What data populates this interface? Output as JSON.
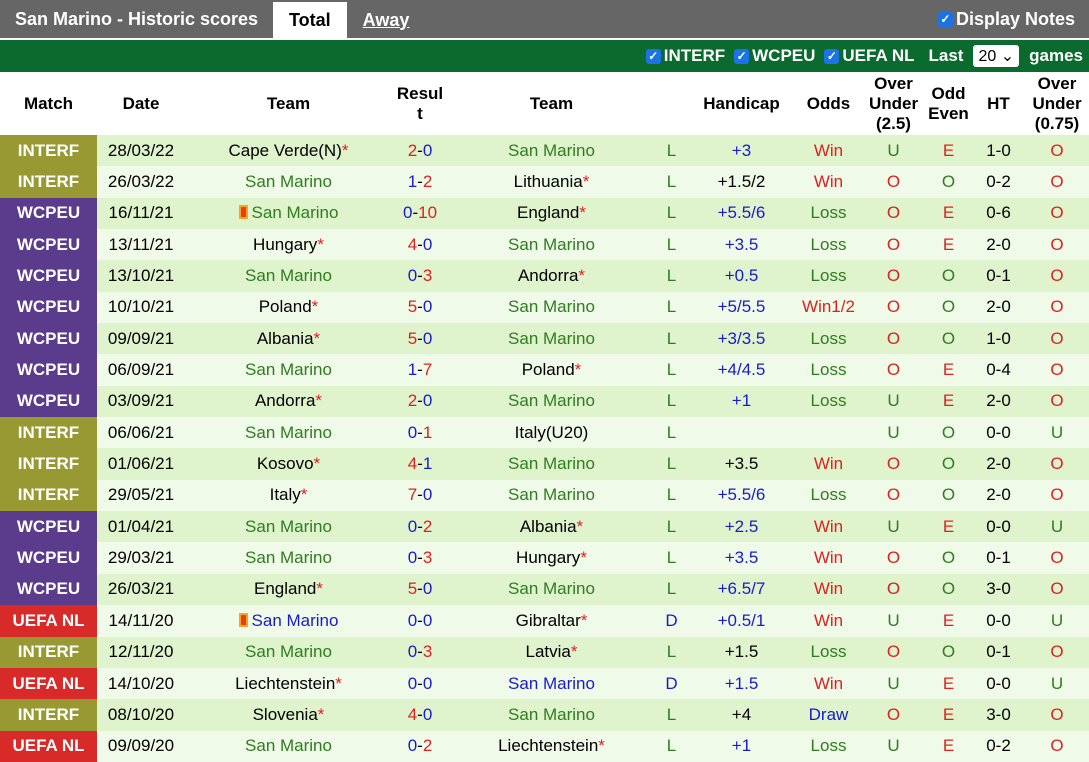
{
  "header": {
    "title": "San Marino - Historic scores",
    "tabs": [
      "Total",
      "Away"
    ],
    "display_notes": "Display Notes"
  },
  "filters": {
    "items": [
      "INTERF",
      "WCPEU",
      "UEFA NL"
    ],
    "last_label": "Last",
    "last_value": "20",
    "games_label": "games"
  },
  "columns": [
    "Match",
    "Date",
    "Team",
    "Resul t",
    "Team",
    "",
    "Handicap",
    "Odds",
    "Over Under (2.5)",
    "Odd Even",
    "HT",
    "Over Under (0.75)"
  ],
  "colors": {
    "INTERF": "#999933",
    "WCPEU": "#5a3b8c",
    "UEFA NL": "#d92a2a"
  },
  "rows": [
    {
      "match": "INTERF",
      "date": "28/03/22",
      "home": "Cape Verde(N)",
      "hs": true,
      "score": "2-0",
      "away": "San Marino",
      "as": false,
      "wl": "L",
      "hcp": "+3",
      "hb": false,
      "odds": "Win",
      "ou": "U",
      "oe": "E",
      "ht": "1-0",
      "ou2": "O"
    },
    {
      "match": "INTERF",
      "date": "26/03/22",
      "home": "San Marino",
      "hs": false,
      "score": "1-2",
      "away": "Lithuania",
      "as": true,
      "wl": "L",
      "hcp": "+1.5/2",
      "hb": true,
      "odds": "Win",
      "ou": "O",
      "oe": "O",
      "ht": "0-2",
      "ou2": "O"
    },
    {
      "match": "WCPEU",
      "date": "16/11/21",
      "home": "San Marino",
      "hs": false,
      "score": "0-10",
      "away": "England",
      "as": true,
      "wl": "L",
      "hcp": "+5.5/6",
      "hb": false,
      "odds": "Loss",
      "ou": "O",
      "oe": "E",
      "ht": "0-6",
      "ou2": "O",
      "card": true
    },
    {
      "match": "WCPEU",
      "date": "13/11/21",
      "home": "Hungary",
      "hs": true,
      "score": "4-0",
      "away": "San Marino",
      "as": false,
      "wl": "L",
      "hcp": "+3.5",
      "hb": false,
      "odds": "Loss",
      "ou": "O",
      "oe": "E",
      "ht": "2-0",
      "ou2": "O"
    },
    {
      "match": "WCPEU",
      "date": "13/10/21",
      "home": "San Marino",
      "hs": false,
      "score": "0-3",
      "away": "Andorra",
      "as": true,
      "wl": "L",
      "hcp": "+0.5",
      "hb": false,
      "odds": "Loss",
      "ou": "O",
      "oe": "O",
      "ht": "0-1",
      "ou2": "O"
    },
    {
      "match": "WCPEU",
      "date": "10/10/21",
      "home": "Poland",
      "hs": true,
      "score": "5-0",
      "away": "San Marino",
      "as": false,
      "wl": "L",
      "hcp": "+5/5.5",
      "hb": false,
      "odds": "Win1/2",
      "ou": "O",
      "oe": "O",
      "ht": "2-0",
      "ou2": "O"
    },
    {
      "match": "WCPEU",
      "date": "09/09/21",
      "home": "Albania",
      "hs": true,
      "score": "5-0",
      "away": "San Marino",
      "as": false,
      "wl": "L",
      "hcp": "+3/3.5",
      "hb": false,
      "odds": "Loss",
      "ou": "O",
      "oe": "O",
      "ht": "1-0",
      "ou2": "O"
    },
    {
      "match": "WCPEU",
      "date": "06/09/21",
      "home": "San Marino",
      "hs": false,
      "score": "1-7",
      "away": "Poland",
      "as": true,
      "wl": "L",
      "hcp": "+4/4.5",
      "hb": false,
      "odds": "Loss",
      "ou": "O",
      "oe": "E",
      "ht": "0-4",
      "ou2": "O"
    },
    {
      "match": "WCPEU",
      "date": "03/09/21",
      "home": "Andorra",
      "hs": true,
      "score": "2-0",
      "away": "San Marino",
      "as": false,
      "wl": "L",
      "hcp": "+1",
      "hb": false,
      "odds": "Loss",
      "ou": "U",
      "oe": "E",
      "ht": "2-0",
      "ou2": "O"
    },
    {
      "match": "INTERF",
      "date": "06/06/21",
      "home": "San Marino",
      "hs": false,
      "score": "0-1",
      "away": "Italy(U20)",
      "as": false,
      "wl": "L",
      "hcp": "",
      "hb": false,
      "odds": "",
      "ou": "U",
      "oe": "O",
      "ht": "0-0",
      "ou2": "U"
    },
    {
      "match": "INTERF",
      "date": "01/06/21",
      "home": "Kosovo",
      "hs": true,
      "score": "4-1",
      "away": "San Marino",
      "as": false,
      "wl": "L",
      "hcp": "+3.5",
      "hb": true,
      "odds": "Win",
      "ou": "O",
      "oe": "O",
      "ht": "2-0",
      "ou2": "O"
    },
    {
      "match": "INTERF",
      "date": "29/05/21",
      "home": "Italy",
      "hs": true,
      "score": "7-0",
      "away": "San Marino",
      "as": false,
      "wl": "L",
      "hcp": "+5.5/6",
      "hb": false,
      "odds": "Loss",
      "ou": "O",
      "oe": "O",
      "ht": "2-0",
      "ou2": "O"
    },
    {
      "match": "WCPEU",
      "date": "01/04/21",
      "home": "San Marino",
      "hs": false,
      "score": "0-2",
      "away": "Albania",
      "as": true,
      "wl": "L",
      "hcp": "+2.5",
      "hb": false,
      "odds": "Win",
      "ou": "U",
      "oe": "E",
      "ht": "0-0",
      "ou2": "U"
    },
    {
      "match": "WCPEU",
      "date": "29/03/21",
      "home": "San Marino",
      "hs": false,
      "score": "0-3",
      "away": "Hungary",
      "as": true,
      "wl": "L",
      "hcp": "+3.5",
      "hb": false,
      "odds": "Win",
      "ou": "O",
      "oe": "O",
      "ht": "0-1",
      "ou2": "O"
    },
    {
      "match": "WCPEU",
      "date": "26/03/21",
      "home": "England",
      "hs": true,
      "score": "5-0",
      "away": "San Marino",
      "as": false,
      "wl": "L",
      "hcp": "+6.5/7",
      "hb": false,
      "odds": "Win",
      "ou": "O",
      "oe": "O",
      "ht": "3-0",
      "ou2": "O"
    },
    {
      "match": "UEFA NL",
      "date": "14/11/20",
      "home": "San Marino",
      "hs": false,
      "score": "0-0",
      "away": "Gibraltar",
      "as": true,
      "wl": "D",
      "hcp": "+0.5/1",
      "hb": false,
      "odds": "Win",
      "ou": "U",
      "oe": "E",
      "ht": "0-0",
      "ou2": "U",
      "card": true
    },
    {
      "match": "INTERF",
      "date": "12/11/20",
      "home": "San Marino",
      "hs": false,
      "score": "0-3",
      "away": "Latvia",
      "as": true,
      "wl": "L",
      "hcp": "+1.5",
      "hb": true,
      "odds": "Loss",
      "ou": "O",
      "oe": "O",
      "ht": "0-1",
      "ou2": "O"
    },
    {
      "match": "UEFA NL",
      "date": "14/10/20",
      "home": "Liechtenstein",
      "hs": true,
      "score": "0-0",
      "away": "San Marino",
      "as": false,
      "wl": "D",
      "hcp": "+1.5",
      "hb": false,
      "odds": "Win",
      "ou": "U",
      "oe": "E",
      "ht": "0-0",
      "ou2": "U"
    },
    {
      "match": "INTERF",
      "date": "08/10/20",
      "home": "Slovenia",
      "hs": true,
      "score": "4-0",
      "away": "San Marino",
      "as": false,
      "wl": "L",
      "hcp": "+4",
      "hb": true,
      "odds": "Draw",
      "ou": "O",
      "oe": "E",
      "ht": "3-0",
      "ou2": "O"
    },
    {
      "match": "UEFA NL",
      "date": "09/09/20",
      "home": "San Marino",
      "hs": false,
      "score": "0-2",
      "away": "Liechtenstein",
      "as": true,
      "wl": "L",
      "hcp": "+1",
      "hb": false,
      "odds": "Loss",
      "ou": "U",
      "oe": "E",
      "ht": "0-2",
      "ou2": "O"
    }
  ]
}
